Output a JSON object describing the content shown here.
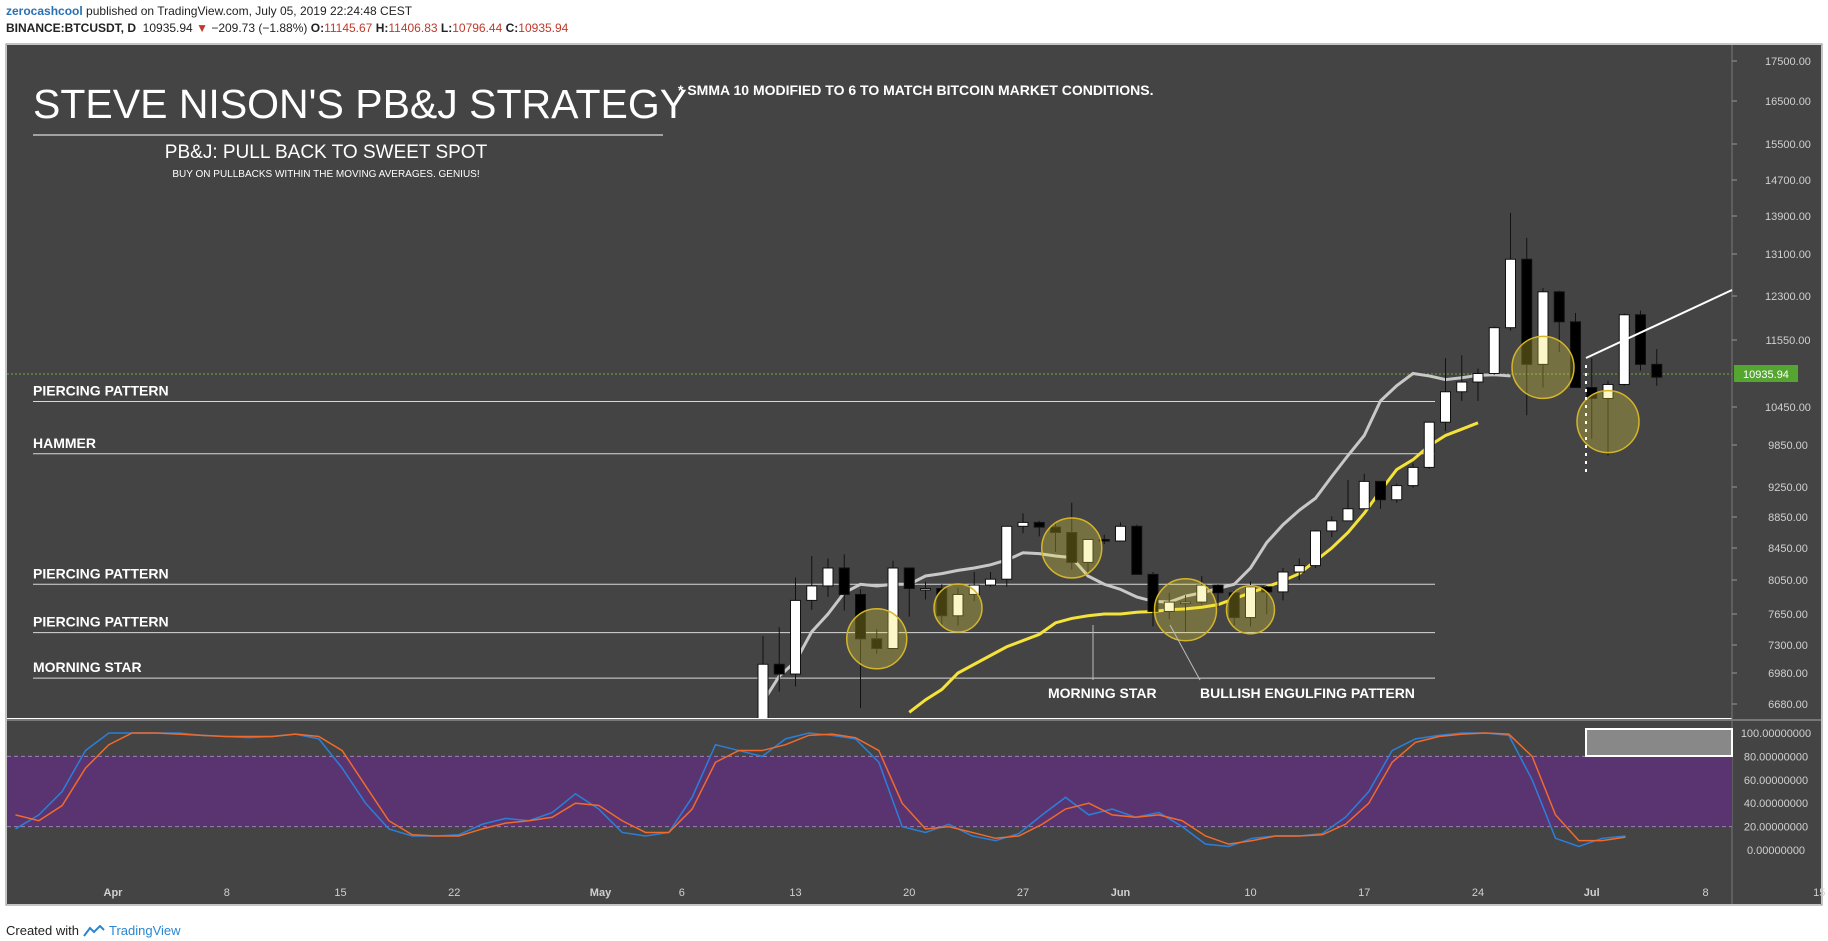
{
  "header": {
    "author": "zerocashcool",
    "published": "published on TradingView.com, July 05, 2019 22:24:48 CEST",
    "symbol": "BINANCE:BTCUSDT, D",
    "last": "10935.94",
    "change": "−209.73 (−1.88%)",
    "o_label": "O:",
    "o": "11145.67",
    "h_label": "H:",
    "h": "11406.83",
    "l_label": "L:",
    "l": "10796.44",
    "c_label": "C:",
    "c": "10935.94"
  },
  "annotations": {
    "title": "STEVE NISON'S PB&J STRATEGY",
    "note": "* SMMA 10 MODIFIED TO 6 TO MATCH BITCOIN MARKET CONDITIONS.",
    "subtitle": "PB&J: PULL BACK TO SWEET SPOT",
    "subnote": "BUY ON PULLBACKS WITHIN THE MOVING AVERAGES. GENIUS!",
    "patterns": [
      {
        "label": "PIERCING PATTERN",
        "price": 10540
      },
      {
        "label": "HAMMER",
        "price": 9725
      },
      {
        "label": "PIERCING PATTERN",
        "price": 8000
      },
      {
        "label": "PIERCING PATTERN",
        "price": 7440
      },
      {
        "label": "MORNING STAR",
        "price": 6930
      }
    ],
    "morning_star": "MORNING STAR",
    "bullish_engulfing": "BULLISH ENGULFING PATTERN",
    "price_tag": "10935.94"
  },
  "footer": {
    "created_with": "Created with",
    "brand": "TradingView"
  },
  "colors": {
    "background": "#444444",
    "candle_up": "#ffffff",
    "candle_down": "#000000",
    "smma_fast": "#c8c8c8",
    "smma_slow": "#f5e23a",
    "stoch_k": "#2b7fd9",
    "stoch_d": "#f06a2b",
    "stoch_band": "#5a3470",
    "price_tag": "#55a630"
  },
  "chart_data": {
    "type": "candlestick",
    "symbol": "BINANCE:BTCUSDT",
    "interval": "D",
    "y_ticks": [
      "17500.00",
      "16500.00",
      "15500.00",
      "14700.00",
      "13900.00",
      "13100.00",
      "12300.00",
      "11550.00",
      "10450.00",
      "9850.00",
      "9250.00",
      "8850.00",
      "8450.00",
      "8050.00",
      "7650.00",
      "7300.00",
      "6980.00",
      "6680.00"
    ],
    "x_ticks": [
      "Apr",
      "8",
      "15",
      "22",
      "May",
      "6",
      "13",
      "20",
      "27",
      "Jun",
      "10",
      "17",
      "24",
      "Jul",
      "8",
      "15"
    ],
    "x_range": [
      "2019-03-26",
      "2019-07-16"
    ],
    "candles": [
      {
        "date": "2019-05-10",
        "o": 6150,
        "h": 6450,
        "l": 6130,
        "c": 6350
      },
      {
        "date": "2019-05-11",
        "o": 6350,
        "h": 7400,
        "l": 6300,
        "c": 7080
      },
      {
        "date": "2019-05-12",
        "o": 7080,
        "h": 7500,
        "l": 6800,
        "c": 6970
      },
      {
        "date": "2019-05-13",
        "o": 6970,
        "h": 8080,
        "l": 6850,
        "c": 7810
      },
      {
        "date": "2019-05-14",
        "o": 7810,
        "h": 8350,
        "l": 7700,
        "c": 7980
      },
      {
        "date": "2019-05-15",
        "o": 7980,
        "h": 8320,
        "l": 7850,
        "c": 8200
      },
      {
        "date": "2019-05-16",
        "o": 8200,
        "h": 8370,
        "l": 7690,
        "c": 7880
      },
      {
        "date": "2019-05-17",
        "o": 7880,
        "h": 7940,
        "l": 6640,
        "c": 7370
      },
      {
        "date": "2019-05-18",
        "o": 7370,
        "h": 7480,
        "l": 7200,
        "c": 7260
      },
      {
        "date": "2019-05-19",
        "o": 7260,
        "h": 8290,
        "l": 7250,
        "c": 8200
      },
      {
        "date": "2019-05-20",
        "o": 8200,
        "h": 8200,
        "l": 7620,
        "c": 7950
      },
      {
        "date": "2019-05-21",
        "o": 7950,
        "h": 8030,
        "l": 7820,
        "c": 7950
      },
      {
        "date": "2019-05-22",
        "o": 7950,
        "h": 8000,
        "l": 7530,
        "c": 7630
      },
      {
        "date": "2019-05-23",
        "o": 7630,
        "h": 7960,
        "l": 7520,
        "c": 7880
      },
      {
        "date": "2019-05-24",
        "o": 7880,
        "h": 8150,
        "l": 7800,
        "c": 7990
      },
      {
        "date": "2019-05-25",
        "o": 7990,
        "h": 8150,
        "l": 7970,
        "c": 8060
      },
      {
        "date": "2019-05-26",
        "o": 8060,
        "h": 8700,
        "l": 7970,
        "c": 8730
      },
      {
        "date": "2019-05-27",
        "o": 8730,
        "h": 8900,
        "l": 8640,
        "c": 8780
      },
      {
        "date": "2019-05-28",
        "o": 8780,
        "h": 8800,
        "l": 8600,
        "c": 8720
      },
      {
        "date": "2019-05-29",
        "o": 8720,
        "h": 8770,
        "l": 8400,
        "c": 8650
      },
      {
        "date": "2019-05-30",
        "o": 8650,
        "h": 9040,
        "l": 8180,
        "c": 8270
      },
      {
        "date": "2019-05-31",
        "o": 8270,
        "h": 8560,
        "l": 8120,
        "c": 8560
      },
      {
        "date": "2019-06-01",
        "o": 8560,
        "h": 8620,
        "l": 8500,
        "c": 8540
      },
      {
        "date": "2019-06-02",
        "o": 8540,
        "h": 8780,
        "l": 8540,
        "c": 8730
      },
      {
        "date": "2019-06-03",
        "o": 8730,
        "h": 8750,
        "l": 8120,
        "c": 8120
      },
      {
        "date": "2019-06-04",
        "o": 8120,
        "h": 8150,
        "l": 7510,
        "c": 7680
      },
      {
        "date": "2019-06-05",
        "o": 7680,
        "h": 7900,
        "l": 7590,
        "c": 7790
      },
      {
        "date": "2019-06-06",
        "o": 7790,
        "h": 7870,
        "l": 7450,
        "c": 7790
      },
      {
        "date": "2019-06-07",
        "o": 7790,
        "h": 8100,
        "l": 7760,
        "c": 7990
      },
      {
        "date": "2019-06-08",
        "o": 7990,
        "h": 8000,
        "l": 7730,
        "c": 7900
      },
      {
        "date": "2019-06-09",
        "o": 7900,
        "h": 7930,
        "l": 7520,
        "c": 7610
      },
      {
        "date": "2019-06-10",
        "o": 7610,
        "h": 8030,
        "l": 7510,
        "c": 7970
      },
      {
        "date": "2019-06-11",
        "o": 7970,
        "h": 7980,
        "l": 7650,
        "c": 7910
      },
      {
        "date": "2019-06-12",
        "o": 7910,
        "h": 8200,
        "l": 7810,
        "c": 8150
      },
      {
        "date": "2019-06-13",
        "o": 8150,
        "h": 8320,
        "l": 8050,
        "c": 8230
      },
      {
        "date": "2019-06-14",
        "o": 8230,
        "h": 8680,
        "l": 8200,
        "c": 8670
      },
      {
        "date": "2019-06-15",
        "o": 8670,
        "h": 8860,
        "l": 8590,
        "c": 8800
      },
      {
        "date": "2019-06-16",
        "o": 8800,
        "h": 9350,
        "l": 8800,
        "c": 8960
      },
      {
        "date": "2019-06-17",
        "o": 8960,
        "h": 9440,
        "l": 8960,
        "c": 9330
      },
      {
        "date": "2019-06-18",
        "o": 9330,
        "h": 9330,
        "l": 8960,
        "c": 9080
      },
      {
        "date": "2019-06-19",
        "o": 9080,
        "h": 9300,
        "l": 9040,
        "c": 9270
      },
      {
        "date": "2019-06-20",
        "o": 9270,
        "h": 9590,
        "l": 9240,
        "c": 9530
      },
      {
        "date": "2019-06-21",
        "o": 9530,
        "h": 10190,
        "l": 9510,
        "c": 10210
      },
      {
        "date": "2019-06-22",
        "o": 10210,
        "h": 11250,
        "l": 10070,
        "c": 10700
      },
      {
        "date": "2019-06-23",
        "o": 10700,
        "h": 11300,
        "l": 10550,
        "c": 10860
      },
      {
        "date": "2019-06-24",
        "o": 10860,
        "h": 11080,
        "l": 10550,
        "c": 11000
      },
      {
        "date": "2019-06-25",
        "o": 11000,
        "h": 11780,
        "l": 10980,
        "c": 11760
      },
      {
        "date": "2019-06-26",
        "o": 11760,
        "h": 13970,
        "l": 11710,
        "c": 13000
      },
      {
        "date": "2019-06-27",
        "o": 13000,
        "h": 13440,
        "l": 10320,
        "c": 11150
      },
      {
        "date": "2019-06-28",
        "o": 11150,
        "h": 12450,
        "l": 10770,
        "c": 12380
      },
      {
        "date": "2019-06-29",
        "o": 12380,
        "h": 12400,
        "l": 11350,
        "c": 11860
      },
      {
        "date": "2019-06-30",
        "o": 11860,
        "h": 12010,
        "l": 10770,
        "c": 10770
      },
      {
        "date": "2019-07-01",
        "o": 10770,
        "h": 11250,
        "l": 9950,
        "c": 10590
      },
      {
        "date": "2019-07-02",
        "o": 10590,
        "h": 10880,
        "l": 9700,
        "c": 10820
      },
      {
        "date": "2019-07-03",
        "o": 10820,
        "h": 12000,
        "l": 10800,
        "c": 11980
      },
      {
        "date": "2019-07-04",
        "o": 11980,
        "h": 12050,
        "l": 11050,
        "c": 11150
      },
      {
        "date": "2019-07-05",
        "o": 11150,
        "h": 11400,
        "l": 10800,
        "c": 10940
      }
    ],
    "series": [
      {
        "name": "SMMA 6",
        "values": [
          6700,
          6950,
          7110,
          7450,
          7650,
          7900,
          8000,
          7980,
          8000,
          8000,
          8100,
          8130,
          8170,
          8200,
          8240,
          8300,
          8390,
          8380,
          8350,
          8330,
          8100,
          8000,
          7940,
          7850,
          7800,
          7790,
          7860,
          7900,
          7950,
          8000,
          8200,
          8520,
          8750,
          8940,
          9100,
          9400,
          9700,
          10000,
          10550,
          10800,
          11000,
          10960,
          10900,
          10930,
          10970,
          10980,
          10960
        ]
      },
      {
        "name": "SMMA 10",
        "values": [
          6600,
          6720,
          6820,
          6980,
          7080,
          7180,
          7280,
          7350,
          7420,
          7550,
          7600,
          7630,
          7650,
          7650,
          7670,
          7680,
          7700,
          7710,
          7730,
          7760,
          7830,
          7900,
          7970,
          8040,
          8130,
          8290,
          8450,
          8650,
          8900,
          9200,
          9500,
          9640,
          9840,
          10000,
          10100,
          10200
        ]
      }
    ],
    "oscillator": {
      "type": "stochastic",
      "y_ticks": [
        "100.00000000",
        "80.00000000",
        "60.00000000",
        "40.00000000",
        "20.00000000",
        "0.00000000"
      ],
      "bands": [
        20,
        80
      ],
      "series": [
        {
          "name": "%K",
          "values": [
            18,
            30,
            50,
            85,
            100,
            100,
            100,
            100,
            98,
            97,
            96,
            97,
            99,
            95,
            70,
            40,
            18,
            12,
            12,
            13,
            22,
            27,
            25,
            32,
            48,
            35,
            15,
            12,
            15,
            45,
            90,
            85,
            80,
            95,
            100,
            98,
            95,
            75,
            20,
            15,
            22,
            12,
            8,
            14,
            30,
            45,
            30,
            35,
            28,
            32,
            20,
            5,
            3,
            10,
            12,
            12,
            14,
            28,
            50,
            85,
            95,
            98,
            100,
            100,
            98,
            60,
            10,
            3,
            10,
            12
          ]
        },
        {
          "name": "%D",
          "values": [
            30,
            25,
            38,
            70,
            90,
            100,
            100,
            99,
            98,
            97,
            97,
            97,
            99,
            97,
            85,
            55,
            25,
            13,
            12,
            12,
            18,
            23,
            25,
            28,
            40,
            38,
            25,
            15,
            15,
            35,
            75,
            85,
            85,
            90,
            98,
            99,
            96,
            85,
            40,
            18,
            20,
            15,
            10,
            12,
            22,
            35,
            40,
            30,
            28,
            30,
            25,
            12,
            5,
            8,
            12,
            12,
            13,
            22,
            40,
            75,
            92,
            97,
            99,
            100,
            99,
            80,
            30,
            8,
            8,
            11
          ]
        }
      ]
    }
  }
}
